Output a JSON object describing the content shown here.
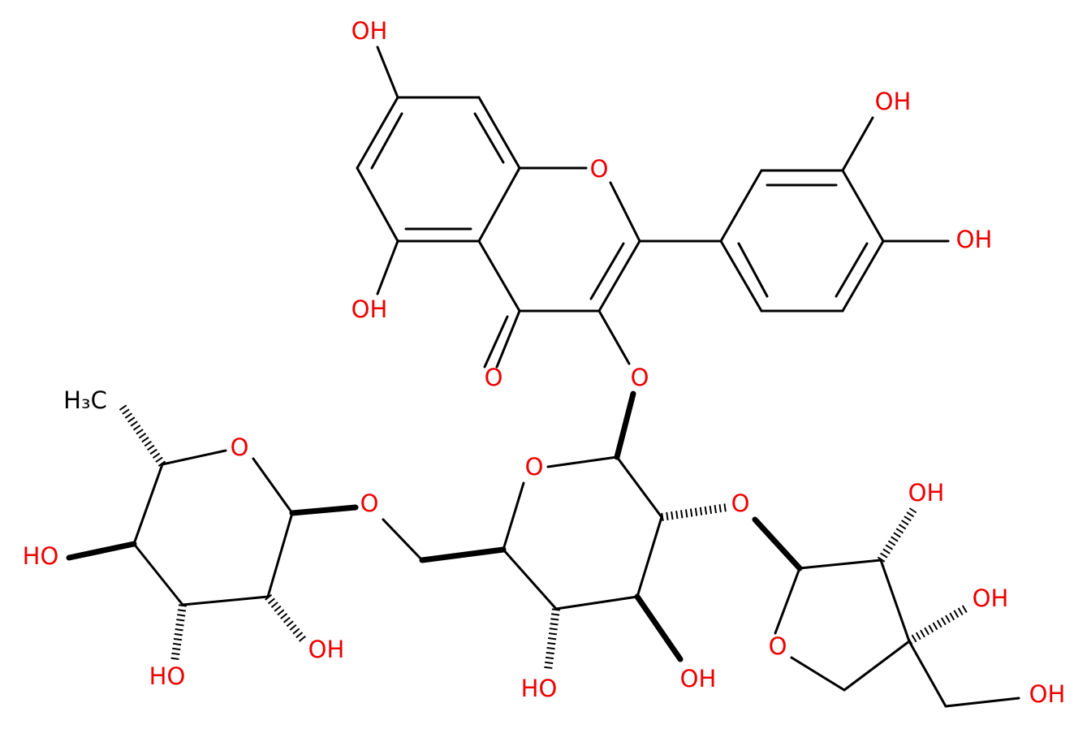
{
  "atoms": [
    "OH",
    "OH",
    "O",
    "OH",
    "OH",
    "O",
    "O",
    "H₃C",
    "O",
    "O",
    "O",
    "OH",
    "O",
    "HO",
    "OH",
    "O",
    "OH",
    "OH",
    "HO",
    "HO",
    "OH"
  ]
}
